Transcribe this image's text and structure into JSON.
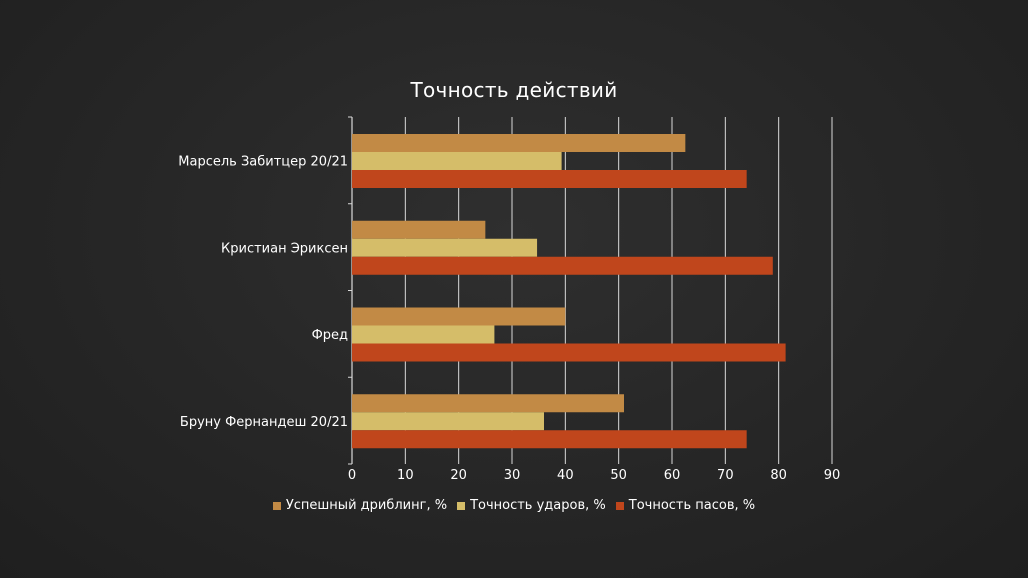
{
  "colors": {
    "background": "#262626",
    "grid": "#d9d9d9"
  },
  "chart_data": {
    "type": "bar",
    "orientation": "horizontal",
    "title": "Точность действий",
    "categories": [
      "Марсель Забитцер 20/21",
      "Кристиан Эриксен",
      "Фред",
      "Бруну Фернандеш 20/21"
    ],
    "series": [
      {
        "name": "Успешный дриблинг, %",
        "color": "#c28a45",
        "values": [
          62.5,
          25,
          40,
          51
        ]
      },
      {
        "name": "Точность ударов, %",
        "color": "#d5bd69",
        "values": [
          39.3,
          34.7,
          26.7,
          36
        ]
      },
      {
        "name": "Точность пасов, %",
        "color": "#c0461c",
        "values": [
          74,
          78.9,
          81.3,
          74
        ]
      }
    ],
    "x_ticks": [
      "0",
      "10",
      "20",
      "30",
      "40",
      "50",
      "60",
      "70",
      "80",
      "90"
    ],
    "xlim": [
      0,
      90
    ],
    "grid": true,
    "legend_position": "bottom"
  }
}
